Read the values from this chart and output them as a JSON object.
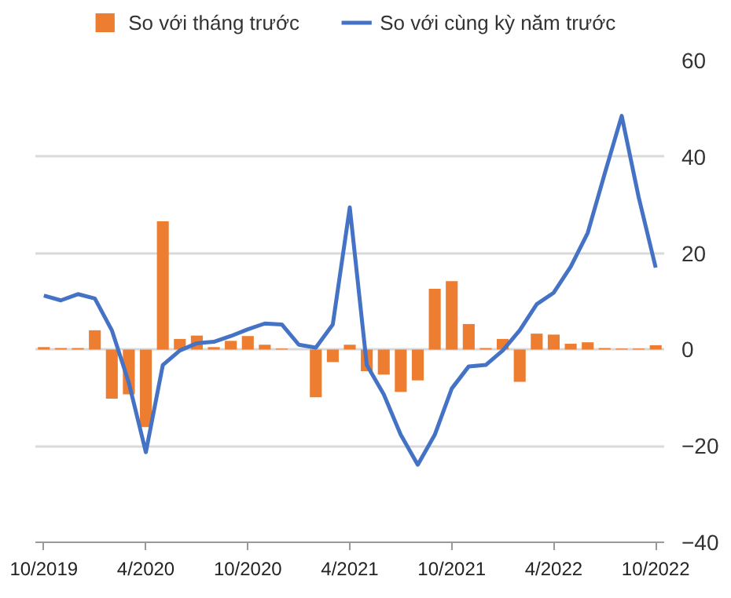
{
  "chart_data": {
    "type": "bar",
    "categories": [
      "10/2019",
      null,
      null,
      null,
      null,
      null,
      "4/2020",
      null,
      null,
      null,
      null,
      null,
      "10/2020",
      null,
      null,
      null,
      null,
      null,
      "4/2021",
      null,
      null,
      null,
      null,
      null,
      "10/2021",
      null,
      null,
      null,
      null,
      null,
      "4/2022",
      null,
      null,
      null,
      null,
      null,
      "10/2022"
    ],
    "series": [
      {
        "name": "So với tháng trước",
        "color": "#ed7d31",
        "values": [
          0.5,
          0.3,
          0.3,
          4.0,
          -10.2,
          -9.3,
          -16.1,
          26.6,
          2.2,
          2.9,
          0.5,
          1.8,
          2.8,
          1.0,
          0.2,
          0,
          -9.9,
          -2.6,
          1.0,
          -4.5,
          -5.2,
          -8.8,
          -6.4,
          12.6,
          14.2,
          5.3,
          0.3,
          2.2,
          -6.7,
          3.3,
          3.1,
          1.2,
          1.5,
          0.3,
          0.2,
          0.2,
          0.9
        ]
      },
      {
        "name": "So với cùng kỳ năm trước",
        "type": "line",
        "color": "#4472c4",
        "values": [
          11.2,
          10.2,
          11.5,
          10.6,
          4.0,
          -6.9,
          -21.3,
          -3.2,
          -0.2,
          1.3,
          1.6,
          2.8,
          4.2,
          5.4,
          5.2,
          1.0,
          0.4,
          5.2,
          29.5,
          -3.2,
          -9.3,
          -17.7,
          -23.9,
          -17.7,
          -8.1,
          -3.5,
          -3.2,
          -0.2,
          4.0,
          9.4,
          11.8,
          17.2,
          24.2,
          36.5,
          48.5,
          31.6,
          17
        ]
      }
    ],
    "ylim": [
      -40,
      60
    ],
    "yticks": [
      -40,
      -20,
      0,
      20,
      40,
      60
    ],
    "grid": "y",
    "legend": "top"
  }
}
